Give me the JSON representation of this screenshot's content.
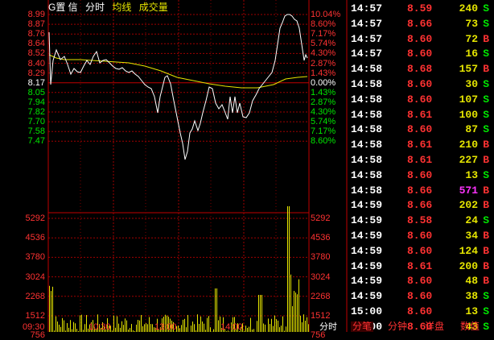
{
  "header": {
    "stock_name": "G置  信",
    "chart_mode": "分时",
    "avg_label": "均线",
    "volume_label": "成交量"
  },
  "price_axis": {
    "left": [
      "8.99",
      "8.87",
      "8.76",
      "8.64",
      "8.52",
      "8.40",
      "8.29",
      "8.17",
      "8.05",
      "7.94",
      "7.82",
      "7.70",
      "7.58",
      "7.47"
    ],
    "right": [
      "10.04%",
      "8.60%",
      "7.17%",
      "5.74%",
      "4.30%",
      "2.87%",
      "1.43%",
      "0.00%",
      "1.43%",
      "2.87%",
      "4.30%",
      "5.74%",
      "7.17%",
      "8.60%"
    ]
  },
  "volume_axis": [
    "5292",
    "4536",
    "3780",
    "3024",
    "2268",
    "1512",
    "756"
  ],
  "time_axis": [
    "09:30",
    "10:30",
    "13:00",
    "14:00"
  ],
  "bottom_label": "分时",
  "trades": [
    {
      "time": "14:57",
      "price": "8.59",
      "vol": "240",
      "side": "S"
    },
    {
      "time": "14:57",
      "price": "8.66",
      "vol": "73",
      "side": "S"
    },
    {
      "time": "14:57",
      "price": "8.60",
      "vol": "72",
      "side": "B"
    },
    {
      "time": "14:57",
      "price": "8.60",
      "vol": "16",
      "side": "S"
    },
    {
      "time": "14:58",
      "price": "8.68",
      "vol": "157",
      "side": "B"
    },
    {
      "time": "14:58",
      "price": "8.60",
      "vol": "30",
      "side": "S"
    },
    {
      "time": "14:58",
      "price": "8.60",
      "vol": "107",
      "side": "S"
    },
    {
      "time": "14:58",
      "price": "8.61",
      "vol": "100",
      "side": "S"
    },
    {
      "time": "14:58",
      "price": "8.60",
      "vol": "87",
      "side": "S"
    },
    {
      "time": "14:58",
      "price": "8.61",
      "vol": "210",
      "side": "B"
    },
    {
      "time": "14:58",
      "price": "8.61",
      "vol": "227",
      "side": "B"
    },
    {
      "time": "14:58",
      "price": "8.60",
      "vol": "13",
      "side": "S"
    },
    {
      "time": "14:58",
      "price": "8.66",
      "vol": "571",
      "side": "B"
    },
    {
      "time": "14:59",
      "price": "8.66",
      "vol": "202",
      "side": "B"
    },
    {
      "time": "14:59",
      "price": "8.58",
      "vol": "24",
      "side": "S"
    },
    {
      "time": "14:59",
      "price": "8.60",
      "vol": "34",
      "side": "B"
    },
    {
      "time": "14:59",
      "price": "8.60",
      "vol": "124",
      "side": "B"
    },
    {
      "time": "14:59",
      "price": "8.61",
      "vol": "200",
      "side": "B"
    },
    {
      "time": "14:59",
      "price": "8.60",
      "vol": "48",
      "side": "B"
    },
    {
      "time": "14:59",
      "price": "8.60",
      "vol": "38",
      "side": "S"
    },
    {
      "time": "15:00",
      "price": "8.60",
      "vol": "13",
      "side": "S"
    },
    {
      "time": "15:00",
      "price": "8.60",
      "vol": "43",
      "side": "S"
    }
  ],
  "tabs": [
    "分笔",
    "分钟",
    "详盘",
    "数值"
  ],
  "colors": {
    "up": "#ff3232",
    "down": "#00e600",
    "neutral": "#ffffff",
    "avg": "#e6e600",
    "grid": "#a00000",
    "big_volume": "#ff33ff"
  }
}
